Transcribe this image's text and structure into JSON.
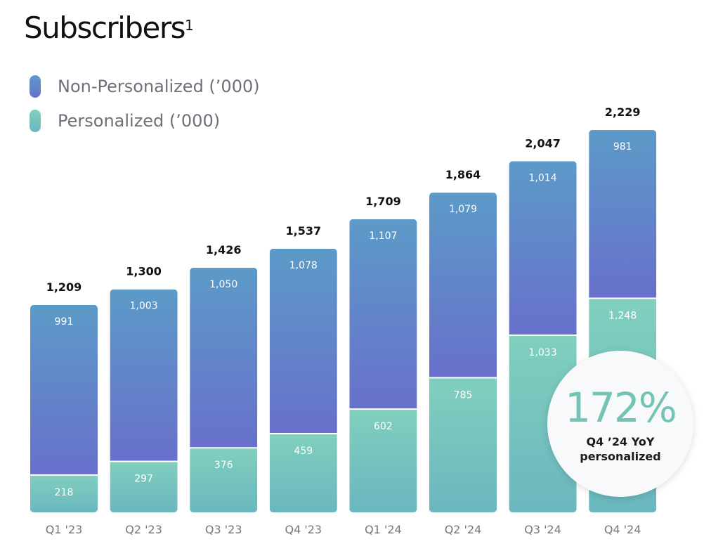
{
  "title": "Subscribers",
  "title_superscript": "1",
  "colors": {
    "non_personalized_top": "#5c9ac8",
    "non_personalized_bottom": "#6870cb",
    "personalized_top": "#80cfbe",
    "personalized_bottom": "#6ab7bf",
    "total_label": "#111111",
    "segment_label": "#ffffff",
    "axis_label": "#777777"
  },
  "legend": [
    {
      "label": "Non-Personalized (’000)",
      "swatch": "non-personalized"
    },
    {
      "label": "Personalized (’000)",
      "swatch": "personalized"
    }
  ],
  "chart_data": {
    "type": "bar",
    "stacked": true,
    "categories": [
      "Q1 '23",
      "Q2 '23",
      "Q3 '23",
      "Q4 '23",
      "Q1 '24",
      "Q2 '24",
      "Q3 '24",
      "Q4 '24"
    ],
    "series": [
      {
        "name": "Personalized (’000)",
        "values": [
          218,
          297,
          376,
          459,
          602,
          785,
          1033,
          1248
        ]
      },
      {
        "name": "Non-Personalized (’000)",
        "values": [
          991,
          1003,
          1050,
          1078,
          1107,
          1079,
          1014,
          981
        ]
      }
    ],
    "totals": [
      1209,
      1300,
      1426,
      1537,
      1709,
      1864,
      2047,
      2229
    ],
    "total_labels": [
      "1,209",
      "1,300",
      "1,426",
      "1,537",
      "1,709",
      "1,864",
      "2,047",
      "2,229"
    ],
    "personalized_labels": [
      "218",
      "297",
      "376",
      "459",
      "602",
      "785",
      "1,033",
      "1,248"
    ],
    "non_personalized_labels": [
      "991",
      "1,003",
      "1,050",
      "1,078",
      "1,107",
      "1,079",
      "1,014",
      "981"
    ],
    "ylim": [
      0,
      2229
    ],
    "grid": false,
    "legend_position": "top-left"
  },
  "callout": {
    "value": "172%",
    "caption": "Q4 ’24 YoY personalized"
  }
}
